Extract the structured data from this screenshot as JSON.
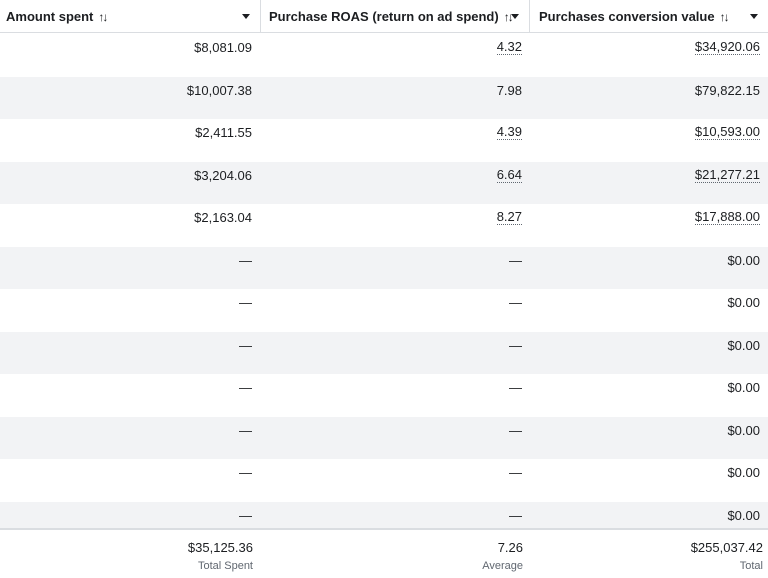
{
  "header": {
    "col1": "Amount spent",
    "col2": "Purchase ROAS (return on ad spend)",
    "col3": "Purchases conversion value",
    "sort_icon": "↑↓"
  },
  "rows": [
    {
      "amount_spent": "$8,081.09",
      "roas": "4.32",
      "conversion_value": "$34,920.06"
    },
    {
      "amount_spent": "$10,007.38",
      "roas": "7.98",
      "conversion_value": "$79,822.15"
    },
    {
      "amount_spent": "$2,411.55",
      "roas": "4.39",
      "conversion_value": "$10,593.00"
    },
    {
      "amount_spent": "$3,204.06",
      "roas": "6.64",
      "conversion_value": "$21,277.21"
    },
    {
      "amount_spent": "$2,163.04",
      "roas": "8.27",
      "conversion_value": "$17,888.00"
    },
    {
      "amount_spent": "—",
      "roas": "—",
      "conversion_value": "$0.00"
    },
    {
      "amount_spent": "—",
      "roas": "—",
      "conversion_value": "$0.00"
    },
    {
      "amount_spent": "—",
      "roas": "—",
      "conversion_value": "$0.00"
    },
    {
      "amount_spent": "—",
      "roas": "—",
      "conversion_value": "$0.00"
    },
    {
      "amount_spent": "—",
      "roas": "—",
      "conversion_value": "$0.00"
    },
    {
      "amount_spent": "—",
      "roas": "—",
      "conversion_value": "$0.00"
    },
    {
      "amount_spent": "—",
      "roas": "—",
      "conversion_value": "$0.00"
    }
  ],
  "footer": {
    "amount_total": "$35,125.36",
    "amount_label": "Total Spent",
    "roas_total": "7.26",
    "roas_label": "Average",
    "conversion_total": "$255,037.42",
    "conversion_label": "Total"
  },
  "icons": {
    "sort": "sort-arrows-icon",
    "dropdown": "caret-down-icon"
  }
}
